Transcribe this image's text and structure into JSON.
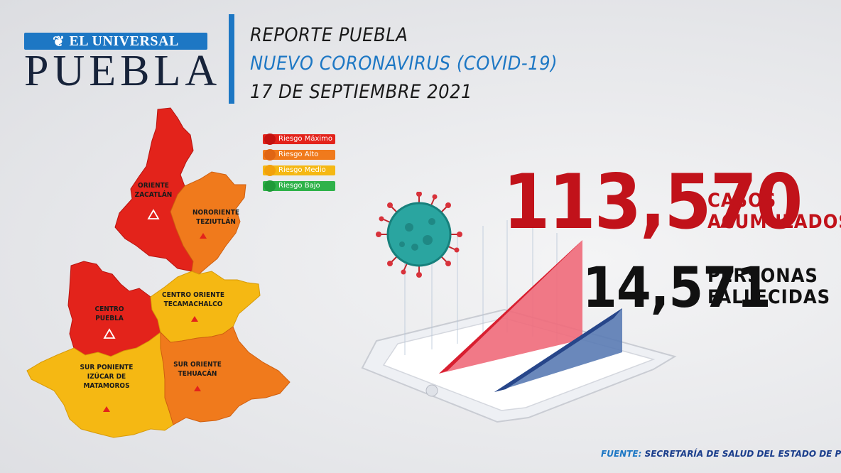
{
  "logo": {
    "top": "EL UNIVERSAL",
    "main": "PUEBLA"
  },
  "header": {
    "line1": "REPORTE PUEBLA",
    "line2": "NUEVO CORONAVIRUS (COVID-19)",
    "line3": "17 DE SEPTIEMBRE 2021"
  },
  "legend": [
    {
      "label": "Riesgo Máximo",
      "color": "#e3231b",
      "bar": "#e3231b"
    },
    {
      "label": "Riesgo Alto",
      "color": "#f07a1c",
      "bar": "#f07a1c"
    },
    {
      "label": "Riesgo Medio",
      "color": "#f5b813",
      "bar": "#f5b813"
    },
    {
      "label": "Riesgo Bajo",
      "color": "#2fb24a",
      "bar": "#2fb24a"
    }
  ],
  "regions": [
    {
      "line1": "ORIENTE",
      "line2": "ZACATLÁN",
      "risk": "Riesgo Máximo"
    },
    {
      "line1": "NORORIENTE",
      "line2": "TEZIUTLÁN",
      "risk": "Riesgo Alto"
    },
    {
      "line1": "CENTRO ORIENTE",
      "line2": "TECAMACHALCO",
      "risk": "Riesgo Medio"
    },
    {
      "line1": "CENTRO",
      "line2": "PUEBLA",
      "risk": "Riesgo Máximo"
    },
    {
      "line1": "SUR PONIENTE",
      "line2": "IZÚCAR DE",
      "line3": "MATAMOROS",
      "risk": "Riesgo Medio"
    },
    {
      "line1": "SUR ORIENTE",
      "line2": "TEHUACÁN",
      "risk": "Riesgo Alto"
    }
  ],
  "stats": {
    "cases": {
      "value": "113,570",
      "label1": "CASOS",
      "label2": "ACUMULADOS"
    },
    "deaths": {
      "value": "14,571",
      "label1": "PERSONAS",
      "label2": "FALLECIDAS"
    }
  },
  "source": {
    "prefix": "FUENTE:",
    "text": "SECRETARÍA DE SALUD DEL ESTADO DE PUEBLA"
  }
}
